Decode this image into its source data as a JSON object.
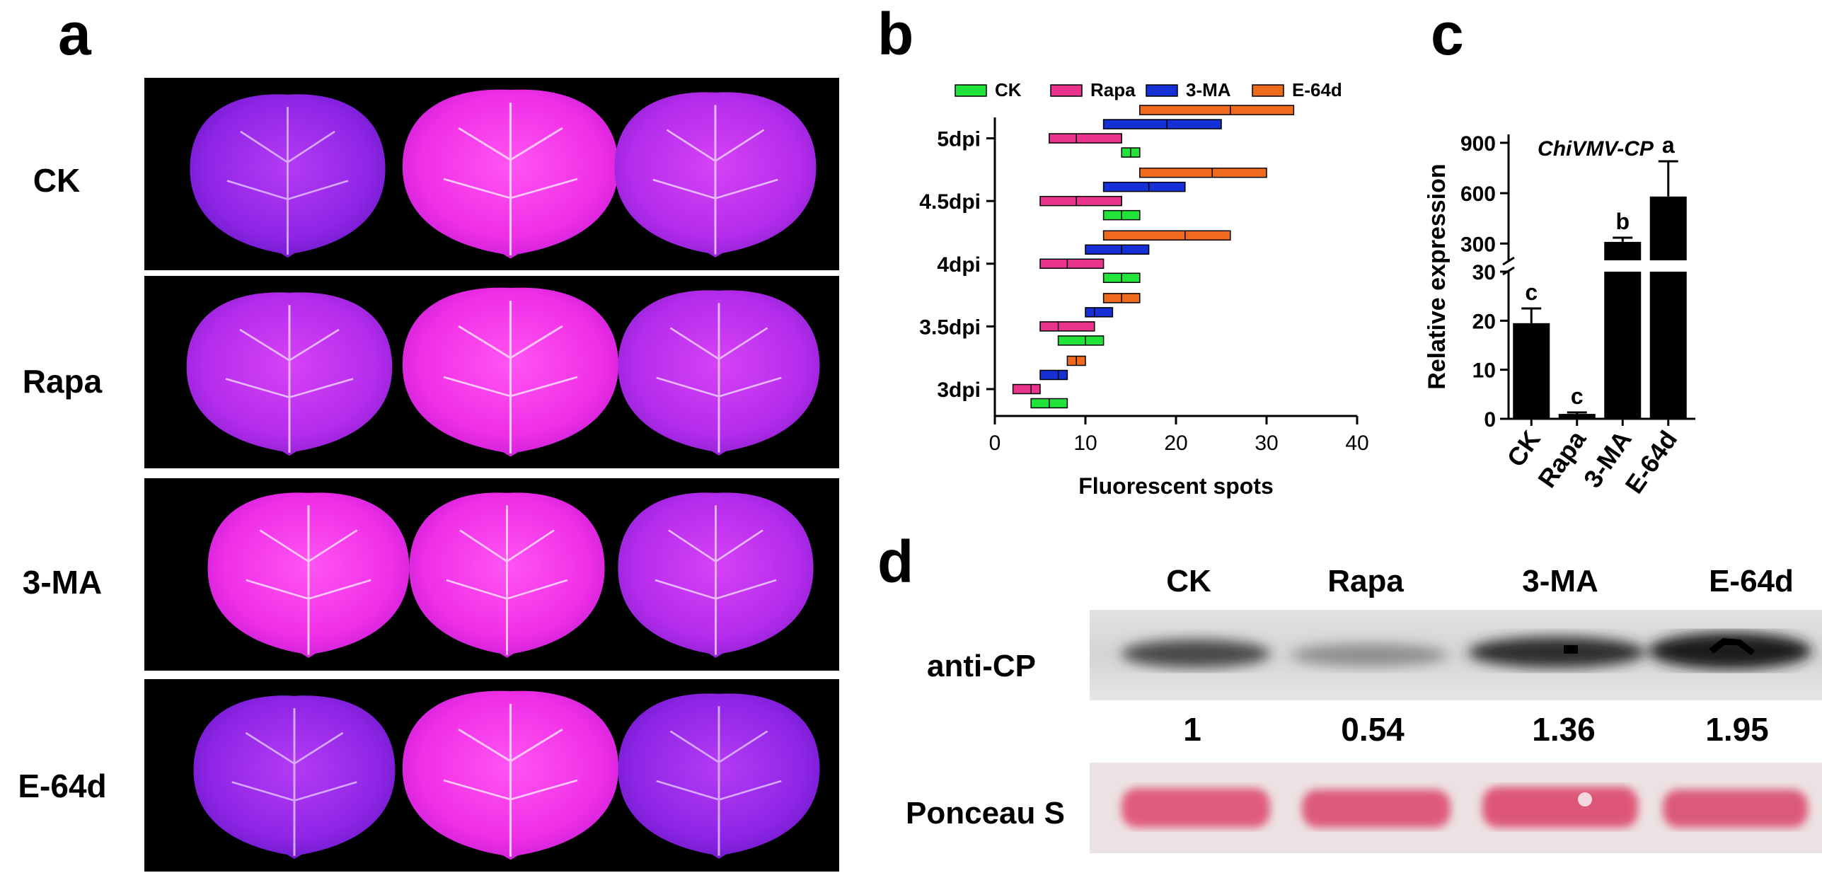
{
  "panel_letters": {
    "a": "a",
    "b": "b",
    "c": "c",
    "d": "d"
  },
  "panel_a": {
    "rows": [
      "CK",
      "Rapa",
      "3-MA",
      "E-64d"
    ]
  },
  "panel_b": {
    "legend": [
      "CK",
      "Rapa",
      "3-MA",
      "E-64d"
    ],
    "colors": {
      "CK": "#22e33a",
      "Rapa": "#e8348d",
      "3-MA": "#1630d8",
      "E-64d": "#f06a1d"
    },
    "y_ticks": [
      "3dpi",
      "3.5dpi",
      "4dpi",
      "4.5dpi",
      "5dpi"
    ],
    "x_ticks": [
      "0",
      "10",
      "20",
      "30",
      "40"
    ],
    "xlabel": "Fluorescent spots"
  },
  "panel_c": {
    "annotation": "ChiVMV-CP",
    "ylabel": "Relative expression",
    "upper_ticks": [
      "300",
      "600",
      "900"
    ],
    "lower_ticks": [
      "0",
      "10",
      "20",
      "30"
    ],
    "categories": [
      "CK",
      "Rapa",
      "3-MA",
      "E-64d"
    ],
    "letters": [
      "c",
      "c",
      "b",
      "a"
    ]
  },
  "panel_d": {
    "lanes": [
      "CK",
      "Rapa",
      "3-MA",
      "E-64d"
    ],
    "blot_label": "anti-CP",
    "ratios": [
      "1",
      "0.54",
      "1.36",
      "1.95"
    ],
    "loading_label": "Ponceau S"
  },
  "chart_data": [
    {
      "type": "bar",
      "orientation": "horizontal floating range (min-mean-max)",
      "categories": [
        "3dpi",
        "3.5dpi",
        "4dpi",
        "4.5dpi",
        "5dpi"
      ],
      "xlabel": "Fluorescent spots",
      "xlim": [
        0,
        40
      ],
      "series": [
        {
          "name": "CK",
          "min": [
            4,
            7,
            12,
            12,
            14
          ],
          "mean": [
            6,
            10,
            14,
            14,
            15
          ],
          "max": [
            8,
            12,
            16,
            16,
            16
          ]
        },
        {
          "name": "Rapa",
          "min": [
            2,
            5,
            5,
            5,
            6
          ],
          "mean": [
            4,
            7,
            8,
            9,
            9
          ],
          "max": [
            5,
            11,
            12,
            14,
            14
          ]
        },
        {
          "name": "3-MA",
          "min": [
            5,
            10,
            10,
            12,
            12
          ],
          "mean": [
            7,
            11,
            14,
            17,
            19
          ],
          "max": [
            8,
            13,
            17,
            21,
            25
          ]
        },
        {
          "name": "E-64d",
          "min": [
            8,
            12,
            12,
            16,
            16
          ],
          "mean": [
            9,
            14,
            21,
            24,
            26
          ],
          "max": [
            10,
            16,
            26,
            30,
            33
          ]
        }
      ]
    },
    {
      "type": "bar",
      "title": "ChiVMV-CP",
      "ylabel": "Relative expression",
      "categories": [
        "CK",
        "Rapa",
        "3-MA",
        "E-64d"
      ],
      "values": [
        19.5,
        1,
        310,
        580
      ],
      "errors": [
        3,
        0.3,
        25,
        210
      ],
      "significance": [
        "c",
        "c",
        "b",
        "a"
      ],
      "y_axis_break": {
        "lower_range": [
          0,
          30
        ],
        "upper_range": [
          200,
          950
        ]
      }
    }
  ]
}
